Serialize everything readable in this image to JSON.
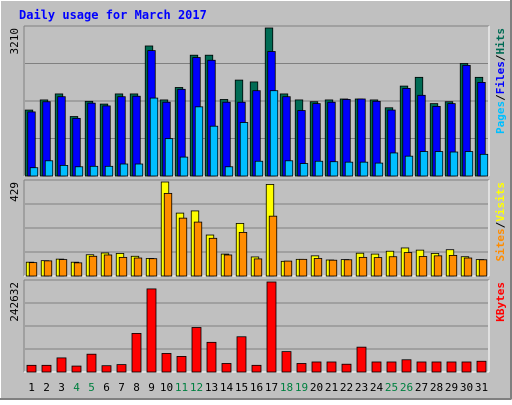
{
  "chart_data": {
    "type": "bar",
    "title": "Daily usage for March 2017",
    "days": [
      {
        "label": "1",
        "weekend": false
      },
      {
        "label": "2",
        "weekend": false
      },
      {
        "label": "3",
        "weekend": false
      },
      {
        "label": "4",
        "weekend": true
      },
      {
        "label": "5",
        "weekend": true
      },
      {
        "label": "6",
        "weekend": false
      },
      {
        "label": "7",
        "weekend": false
      },
      {
        "label": "8",
        "weekend": false
      },
      {
        "label": "9",
        "weekend": false
      },
      {
        "label": "10",
        "weekend": false
      },
      {
        "label": "11",
        "weekend": true
      },
      {
        "label": "12",
        "weekend": true
      },
      {
        "label": "13",
        "weekend": false
      },
      {
        "label": "14",
        "weekend": false
      },
      {
        "label": "15",
        "weekend": false
      },
      {
        "label": "16",
        "weekend": false
      },
      {
        "label": "17",
        "weekend": false
      },
      {
        "label": "18",
        "weekend": true
      },
      {
        "label": "19",
        "weekend": true
      },
      {
        "label": "20",
        "weekend": false
      },
      {
        "label": "21",
        "weekend": false
      },
      {
        "label": "22",
        "weekend": false
      },
      {
        "label": "23",
        "weekend": false
      },
      {
        "label": "24",
        "weekend": false
      },
      {
        "label": "25",
        "weekend": true
      },
      {
        "label": "26",
        "weekend": true
      },
      {
        "label": "27",
        "weekend": false
      },
      {
        "label": "28",
        "weekend": false
      },
      {
        "label": "29",
        "weekend": false
      },
      {
        "label": "30",
        "weekend": false
      },
      {
        "label": "31",
        "weekend": false
      }
    ],
    "panels": [
      {
        "id": "hits",
        "ymax_label": "3210",
        "ymax": 3210,
        "legend": [
          "Pages",
          "Files",
          "Hits"
        ],
        "series": [
          {
            "name": "Hits",
            "color": "#006b54",
            "values": [
              1430,
              1650,
              1780,
              1290,
              1620,
              1560,
              1780,
              1780,
              2820,
              1650,
              1920,
              2620,
              2620,
              1660,
              2080,
              2040,
              3210,
              1780,
              1650,
              1610,
              1650,
              1670,
              1670,
              1650,
              1480,
              1950,
              2140,
              1570,
              1610,
              2440,
              2140
            ]
          },
          {
            "name": "Files",
            "color": "#0000ff",
            "values": [
              1390,
              1610,
              1720,
              1250,
              1580,
              1520,
              1720,
              1730,
              2720,
              1600,
              1880,
              2570,
              2510,
              1600,
              1600,
              1850,
              2700,
              1720,
              1420,
              1570,
              1600,
              1660,
              1670,
              1620,
              1430,
              1900,
              1750,
              1510,
              1570,
              2400,
              2030
            ]
          },
          {
            "name": "Pages",
            "color": "#00bfff",
            "values": [
              180,
              330,
              230,
              200,
              210,
              210,
              260,
              260,
              1690,
              810,
              410,
              1500,
              1080,
              200,
              1160,
              320,
              1850,
              330,
              270,
              320,
              310,
              300,
              300,
              280,
              500,
              430,
              530,
              530,
              520,
              530,
              470
            ]
          }
        ]
      },
      {
        "id": "visits",
        "ymax_label": "429",
        "ymax": 429,
        "legend": [
          "Sites",
          "Visits"
        ],
        "series": [
          {
            "name": "Visits",
            "color": "#ffff00",
            "values": [
              63,
              70,
              77,
              63,
              97,
              105,
              103,
              90,
              80,
              429,
              287,
              297,
              187,
              100,
              240,
              87,
              418,
              67,
              76,
              92,
              73,
              75,
              104,
              100,
              113,
              128,
              118,
              103,
              120,
              88,
              75
            ]
          },
          {
            "name": "Sites",
            "color": "#ff8c00",
            "values": [
              61,
              69,
              75,
              60,
              90,
              96,
              85,
              82,
              79,
              377,
              264,
              246,
              172,
              96,
              199,
              78,
              273,
              68,
              76,
              80,
              72,
              74,
              85,
              84,
              88,
              107,
              89,
              92,
              94,
              82,
              74
            ]
          }
        ]
      },
      {
        "id": "kbytes",
        "ymax_label": "242632",
        "ymax": 242632,
        "legend": [
          "KBytes"
        ],
        "series": [
          {
            "name": "KBytes",
            "color": "#ff0000",
            "values": [
              18000,
              18000,
              38000,
              16000,
              48000,
              17000,
              20000,
              104000,
              224000,
              50000,
              42000,
              120000,
              80000,
              23000,
              95000,
              18000,
              242632,
              55000,
              23000,
              27000,
              27000,
              21000,
              67000,
              27000,
              27000,
              33000,
              27000,
              27000,
              27000,
              27000,
              29000
            ]
          }
        ]
      }
    ]
  }
}
